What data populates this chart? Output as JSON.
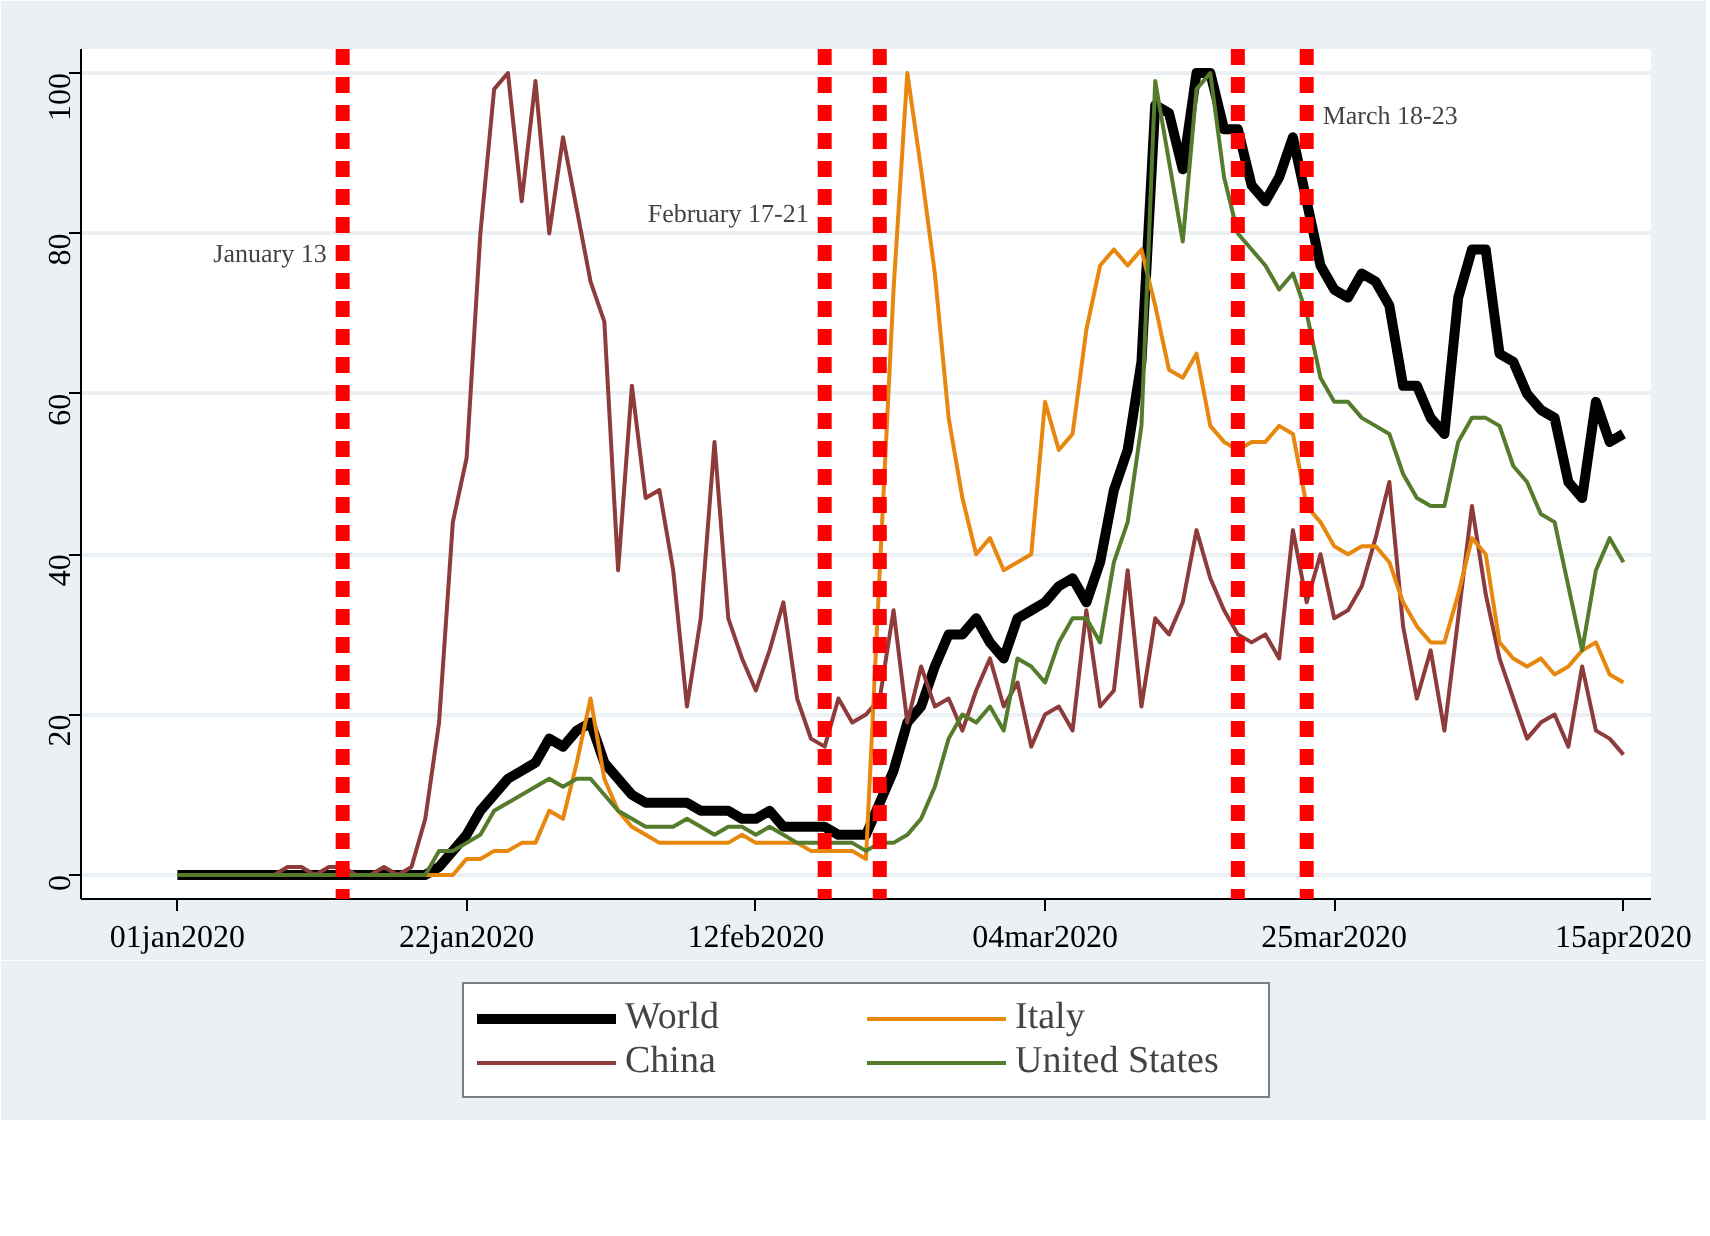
{
  "chart_data": {
    "type": "line",
    "x": [
      "2020-01-01",
      "2020-01-02",
      "2020-01-03",
      "2020-01-04",
      "2020-01-05",
      "2020-01-06",
      "2020-01-07",
      "2020-01-08",
      "2020-01-09",
      "2020-01-10",
      "2020-01-11",
      "2020-01-12",
      "2020-01-13",
      "2020-01-14",
      "2020-01-15",
      "2020-01-16",
      "2020-01-17",
      "2020-01-18",
      "2020-01-19",
      "2020-01-20",
      "2020-01-21",
      "2020-01-22",
      "2020-01-23",
      "2020-01-24",
      "2020-01-25",
      "2020-01-26",
      "2020-01-27",
      "2020-01-28",
      "2020-01-29",
      "2020-01-30",
      "2020-01-31",
      "2020-02-01",
      "2020-02-02",
      "2020-02-03",
      "2020-02-04",
      "2020-02-05",
      "2020-02-06",
      "2020-02-07",
      "2020-02-08",
      "2020-02-09",
      "2020-02-10",
      "2020-02-11",
      "2020-02-12",
      "2020-02-13",
      "2020-02-14",
      "2020-02-15",
      "2020-02-16",
      "2020-02-17",
      "2020-02-18",
      "2020-02-19",
      "2020-02-20",
      "2020-02-21",
      "2020-02-22",
      "2020-02-23",
      "2020-02-24",
      "2020-02-25",
      "2020-02-26",
      "2020-02-27",
      "2020-02-28",
      "2020-02-29",
      "2020-03-01",
      "2020-03-02",
      "2020-03-03",
      "2020-03-04",
      "2020-03-05",
      "2020-03-06",
      "2020-03-07",
      "2020-03-08",
      "2020-03-09",
      "2020-03-10",
      "2020-03-11",
      "2020-03-12",
      "2020-03-13",
      "2020-03-14",
      "2020-03-15",
      "2020-03-16",
      "2020-03-17",
      "2020-03-18",
      "2020-03-19",
      "2020-03-20",
      "2020-03-21",
      "2020-03-22",
      "2020-03-23",
      "2020-03-24",
      "2020-03-25",
      "2020-03-26",
      "2020-03-27",
      "2020-03-28",
      "2020-03-29",
      "2020-03-30",
      "2020-03-31",
      "2020-04-01",
      "2020-04-02",
      "2020-04-03",
      "2020-04-04",
      "2020-04-05",
      "2020-04-06",
      "2020-04-07",
      "2020-04-08",
      "2020-04-09",
      "2020-04-10",
      "2020-04-11",
      "2020-04-12",
      "2020-04-13",
      "2020-04-14",
      "2020-04-15"
    ],
    "series": [
      {
        "name": "World",
        "color": "#000000",
        "values": [
          0,
          0,
          0,
          0,
          0,
          0,
          0,
          0,
          0,
          0,
          0,
          0,
          0,
          0,
          0,
          0,
          0,
          0,
          0,
          1,
          3,
          5,
          8,
          10,
          12,
          13,
          14,
          17,
          16,
          18,
          19,
          14,
          12,
          10,
          9,
          9,
          9,
          9,
          8,
          8,
          8,
          7,
          7,
          8,
          6,
          6,
          6,
          6,
          5,
          5,
          5,
          9,
          13,
          19,
          21,
          26,
          30,
          30,
          32,
          29,
          27,
          32,
          33,
          34,
          36,
          37,
          34,
          39,
          48,
          53,
          64,
          96,
          95,
          88,
          100,
          100,
          93,
          93,
          86,
          84,
          87,
          92,
          84,
          76,
          73,
          72,
          75,
          74,
          71,
          61,
          61,
          57,
          55,
          72,
          78,
          78,
          65,
          64,
          60,
          58,
          57,
          49,
          47,
          59,
          54,
          55
        ]
      },
      {
        "name": "China",
        "color": "#8e3b3b",
        "values": [
          null,
          null,
          null,
          null,
          null,
          null,
          null,
          0,
          1,
          1,
          0,
          1,
          1,
          0,
          0,
          1,
          0,
          1,
          7,
          19,
          44,
          52,
          80,
          98,
          100,
          84,
          99,
          80,
          92,
          83,
          74,
          69,
          38,
          61,
          47,
          48,
          38,
          21,
          32,
          54,
          32,
          27,
          23,
          28,
          34,
          22,
          17,
          16,
          22,
          19,
          20,
          22,
          33,
          19,
          26,
          21,
          22,
          18,
          23,
          27,
          21,
          24,
          16,
          20,
          21,
          18,
          33,
          21,
          23,
          38,
          21,
          32,
          30,
          34,
          43,
          37,
          33,
          30,
          29,
          30,
          27,
          43,
          34,
          40,
          32,
          33,
          36,
          42,
          49,
          31,
          22,
          28,
          18,
          32,
          46,
          35,
          27,
          22,
          17,
          19,
          20,
          16,
          26,
          18,
          17,
          15
        ]
      },
      {
        "name": "Italy",
        "color": "#e8870e",
        "values": [
          null,
          null,
          null,
          null,
          null,
          null,
          null,
          null,
          null,
          null,
          null,
          null,
          null,
          null,
          null,
          null,
          null,
          0,
          0,
          0,
          0,
          2,
          2,
          3,
          3,
          4,
          4,
          8,
          7,
          14,
          22,
          12,
          8,
          6,
          5,
          4,
          4,
          4,
          4,
          4,
          4,
          5,
          4,
          4,
          4,
          4,
          3,
          3,
          3,
          3,
          2,
          38,
          73,
          100,
          88,
          75,
          57,
          47,
          40,
          42,
          38,
          39,
          40,
          59,
          53,
          55,
          68,
          76,
          78,
          76,
          78,
          71,
          63,
          62,
          65,
          56,
          54,
          53,
          54,
          54,
          56,
          55,
          46,
          44,
          41,
          40,
          41,
          41,
          39,
          34,
          31,
          29,
          29,
          35,
          42,
          40,
          29,
          27,
          26,
          27,
          25,
          26,
          28,
          29,
          25,
          24
        ]
      },
      {
        "name": "United States",
        "color": "#557c2c",
        "values": [
          0,
          0,
          0,
          0,
          0,
          0,
          0,
          0,
          0,
          0,
          0,
          0,
          0,
          0,
          0,
          0,
          0,
          0,
          0,
          3,
          3,
          4,
          5,
          8,
          9,
          10,
          11,
          12,
          11,
          12,
          12,
          10,
          8,
          7,
          6,
          6,
          6,
          7,
          6,
          5,
          6,
          6,
          5,
          6,
          5,
          4,
          4,
          4,
          4,
          4,
          3,
          4,
          4,
          5,
          7,
          11,
          17,
          20,
          19,
          21,
          18,
          27,
          26,
          24,
          29,
          32,
          32,
          29,
          39,
          44,
          56,
          99,
          89,
          79,
          98,
          100,
          87,
          80,
          78,
          76,
          73,
          75,
          70,
          62,
          59,
          59,
          57,
          56,
          55,
          50,
          47,
          46,
          46,
          54,
          57,
          57,
          56,
          51,
          49,
          45,
          44,
          36,
          28,
          38,
          42,
          39
        ]
      }
    ],
    "xlim": [
      "2019-12-25",
      "2020-04-17"
    ],
    "xticks": [
      {
        "value": "2020-01-01",
        "label": "01jan2020"
      },
      {
        "value": "2020-01-22",
        "label": "22jan2020"
      },
      {
        "value": "2020-02-12",
        "label": "12feb2020"
      },
      {
        "value": "2020-03-04",
        "label": "04mar2020"
      },
      {
        "value": "2020-03-25",
        "label": "25mar2020"
      },
      {
        "value": "2020-04-15",
        "label": "15apr2020"
      }
    ],
    "ylim": [
      -3,
      103
    ],
    "yticks": [
      0,
      20,
      40,
      60,
      80,
      100
    ],
    "ref_lines": [
      {
        "axis": "x",
        "value": "2020-01-13",
        "color": "#ff0000",
        "line_style": "dashed",
        "label": "January 13"
      },
      {
        "axis": "x",
        "value": "2020-02-17",
        "color": "#ff0000",
        "line_style": "dashed",
        "label": "February 17-21"
      },
      {
        "axis": "x",
        "value": "2020-02-21",
        "color": "#ff0000",
        "line_style": "dashed"
      },
      {
        "axis": "x",
        "value": "2020-03-18",
        "color": "#ff0000",
        "line_style": "dashed"
      },
      {
        "axis": "x",
        "value": "2020-03-23",
        "color": "#ff0000",
        "line_style": "dashed",
        "label": "March 18-23"
      }
    ],
    "grid": "y",
    "legend": "bottom",
    "marker": "none",
    "line_style": "solid"
  }
}
